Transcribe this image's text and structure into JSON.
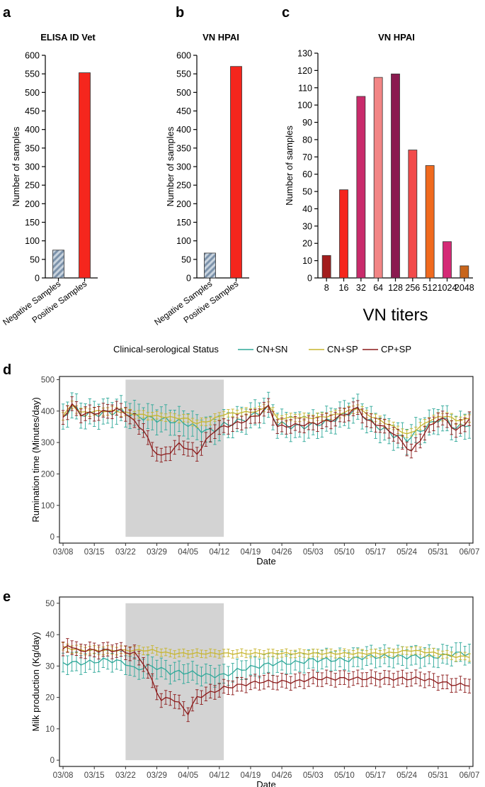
{
  "panel_labels": {
    "a": "a",
    "b": "b",
    "c": "c",
    "d": "d",
    "e": "e"
  },
  "colors": {
    "red": "#f5261d",
    "hatch": "#9fb3c8",
    "cn_sn": "#2ea899",
    "cn_sp": "#c7b52e",
    "cp_sp": "#8b1a1a",
    "shade": "#d3d3d3"
  },
  "legend": {
    "title": "Clinical-serological Status",
    "items": [
      {
        "key": "cn_sn",
        "label": "CN+SN"
      },
      {
        "key": "cn_sp",
        "label": "CN+SP"
      },
      {
        "key": "cp_sp",
        "label": "CP+SP"
      }
    ]
  },
  "chart_data": [
    {
      "id": "a",
      "type": "bar",
      "title": "ELISA ID Vet",
      "ylabel": "Number of samples",
      "xlabel": "",
      "categories": [
        "Negative Samples",
        "Positive Samples"
      ],
      "values": [
        75,
        553
      ],
      "ylim": [
        0,
        600
      ],
      "yticks": [
        0,
        50,
        100,
        150,
        200,
        250,
        300,
        350,
        400,
        450,
        500,
        550,
        600
      ]
    },
    {
      "id": "b",
      "type": "bar",
      "title": "VN HPAI",
      "ylabel": "Number of samples",
      "xlabel": "",
      "categories": [
        "Negative Samples",
        "Positive Samples"
      ],
      "values": [
        67,
        570
      ],
      "ylim": [
        0,
        600
      ],
      "yticks": [
        0,
        50,
        100,
        150,
        200,
        250,
        300,
        350,
        400,
        450,
        500,
        550,
        600
      ]
    },
    {
      "id": "c",
      "type": "bar",
      "title": "VN HPAI",
      "ylabel": "Number of samples",
      "xlabel": "VN titers",
      "categories": [
        "8",
        "16",
        "32",
        "64",
        "128",
        "256",
        "512",
        "1024",
        "2048"
      ],
      "values": [
        13,
        51,
        105,
        116,
        118,
        74,
        65,
        21,
        7
      ],
      "bar_colors": [
        "#a31d1d",
        "#f5261d",
        "#c92a6b",
        "#f28585",
        "#8a1a4f",
        "#f24b4b",
        "#f06a1e",
        "#d42a76",
        "#c8651b"
      ],
      "ylim": [
        0,
        130
      ],
      "yticks": [
        0,
        10,
        20,
        30,
        40,
        50,
        60,
        70,
        80,
        90,
        100,
        110,
        120,
        130
      ]
    },
    {
      "id": "d",
      "type": "line",
      "title": "",
      "ylabel": "Rumination time (Minutes/day)",
      "xlabel": "Date",
      "x_start": "03/08",
      "n_days": 92,
      "xtick_labels": [
        "03/08",
        "03/15",
        "03/22",
        "03/29",
        "04/05",
        "04/12",
        "04/19",
        "04/26",
        "05/03",
        "05/10",
        "05/17",
        "05/24",
        "05/31",
        "06/07"
      ],
      "ylim": [
        -20,
        510
      ],
      "yticks": [
        0,
        100,
        200,
        300,
        400,
        500
      ],
      "shaded_day_range": [
        14,
        36
      ],
      "series": [
        {
          "name": "CN+SN",
          "key": "cn_sn",
          "err": 40,
          "anchors": [
            [
              0,
              375
            ],
            [
              2,
              420
            ],
            [
              4,
              390
            ],
            [
              7,
              390
            ],
            [
              10,
              395
            ],
            [
              13,
              400
            ],
            [
              16,
              385
            ],
            [
              20,
              375
            ],
            [
              24,
              370
            ],
            [
              28,
              360
            ],
            [
              30,
              345
            ],
            [
              33,
              335
            ],
            [
              36,
              355
            ],
            [
              40,
              370
            ],
            [
              44,
              395
            ],
            [
              46,
              410
            ],
            [
              48,
              360
            ],
            [
              52,
              350
            ],
            [
              56,
              355
            ],
            [
              60,
              370
            ],
            [
              64,
              395
            ],
            [
              66,
              405
            ],
            [
              68,
              375
            ],
            [
              70,
              355
            ],
            [
              72,
              340
            ],
            [
              74,
              325
            ],
            [
              77,
              310
            ],
            [
              79,
              330
            ],
            [
              82,
              355
            ],
            [
              84,
              375
            ],
            [
              86,
              370
            ],
            [
              88,
              345
            ],
            [
              91,
              360
            ]
          ]
        },
        {
          "name": "CN+SP",
          "key": "cn_sp",
          "err": 12,
          "anchors": [
            [
              0,
              385
            ],
            [
              2,
              420
            ],
            [
              4,
              395
            ],
            [
              8,
              400
            ],
            [
              12,
              400
            ],
            [
              16,
              390
            ],
            [
              20,
              385
            ],
            [
              24,
              380
            ],
            [
              28,
              375
            ],
            [
              30,
              360
            ],
            [
              33,
              370
            ],
            [
              36,
              390
            ],
            [
              40,
              395
            ],
            [
              44,
              400
            ],
            [
              46,
              420
            ],
            [
              48,
              375
            ],
            [
              52,
              380
            ],
            [
              56,
              378
            ],
            [
              60,
              385
            ],
            [
              64,
              400
            ],
            [
              66,
              410
            ],
            [
              68,
              390
            ],
            [
              71,
              370
            ],
            [
              74,
              350
            ],
            [
              77,
              325
            ],
            [
              79,
              340
            ],
            [
              82,
              370
            ],
            [
              84,
              380
            ],
            [
              86,
              385
            ],
            [
              88,
              370
            ],
            [
              91,
              375
            ]
          ]
        },
        {
          "name": "CP+SP",
          "key": "cp_sp",
          "err": 22,
          "anchors": [
            [
              0,
              380
            ],
            [
              2,
              420
            ],
            [
              4,
              390
            ],
            [
              8,
              395
            ],
            [
              12,
              405
            ],
            [
              14,
              395
            ],
            [
              16,
              365
            ],
            [
              18,
              340
            ],
            [
              20,
              280
            ],
            [
              22,
              255
            ],
            [
              24,
              270
            ],
            [
              26,
              295
            ],
            [
              28,
              280
            ],
            [
              30,
              265
            ],
            [
              32,
              305
            ],
            [
              34,
              340
            ],
            [
              36,
              350
            ],
            [
              40,
              365
            ],
            [
              44,
              390
            ],
            [
              46,
              415
            ],
            [
              48,
              350
            ],
            [
              52,
              355
            ],
            [
              56,
              360
            ],
            [
              60,
              370
            ],
            [
              64,
              395
            ],
            [
              66,
              410
            ],
            [
              68,
              370
            ],
            [
              71,
              355
            ],
            [
              74,
              330
            ],
            [
              76,
              300
            ],
            [
              78,
              270
            ],
            [
              80,
              310
            ],
            [
              82,
              350
            ],
            [
              84,
              375
            ],
            [
              86,
              370
            ],
            [
              88,
              335
            ],
            [
              91,
              375
            ]
          ]
        }
      ]
    },
    {
      "id": "e",
      "type": "line",
      "title": "",
      "ylabel": "Milk production (Kg/day)",
      "xlabel": "Date",
      "x_start": "03/08",
      "n_days": 92,
      "xtick_labels": [
        "03/08",
        "03/15",
        "03/22",
        "03/29",
        "04/05",
        "04/12",
        "04/19",
        "04/26",
        "05/03",
        "05/10",
        "05/17",
        "05/24",
        "05/31",
        "06/07"
      ],
      "ylim": [
        -2,
        52
      ],
      "yticks": [
        0,
        10,
        20,
        30,
        40,
        50
      ],
      "shaded_day_range": [
        14,
        36
      ],
      "series": [
        {
          "name": "CN+SN",
          "key": "cn_sn",
          "err": 3,
          "anchors": [
            [
              0,
              31
            ],
            [
              5,
              31
            ],
            [
              10,
              32
            ],
            [
              14,
              31
            ],
            [
              16,
              29
            ],
            [
              20,
              30
            ],
            [
              24,
              28
            ],
            [
              28,
              28
            ],
            [
              32,
              27
            ],
            [
              36,
              27
            ],
            [
              40,
              29
            ],
            [
              44,
              30
            ],
            [
              48,
              31
            ],
            [
              52,
              31
            ],
            [
              56,
              32
            ],
            [
              60,
              32
            ],
            [
              64,
              32
            ],
            [
              68,
              33
            ],
            [
              72,
              33
            ],
            [
              76,
              33
            ],
            [
              80,
              33
            ],
            [
              84,
              33
            ],
            [
              88,
              34
            ],
            [
              91,
              34
            ]
          ]
        },
        {
          "name": "CN+SP",
          "key": "cn_sp",
          "err": 1.2,
          "anchors": [
            [
              0,
              36
            ],
            [
              4,
              35
            ],
            [
              8,
              35
            ],
            [
              12,
              35
            ],
            [
              16,
              35
            ],
            [
              20,
              35
            ],
            [
              24,
              34
            ],
            [
              28,
              34
            ],
            [
              32,
              34
            ],
            [
              36,
              34
            ],
            [
              40,
              34
            ],
            [
              48,
              34
            ],
            [
              56,
              34
            ],
            [
              64,
              34
            ],
            [
              72,
              34
            ],
            [
              78,
              35
            ],
            [
              84,
              34
            ],
            [
              88,
              33
            ],
            [
              91,
              33
            ]
          ]
        },
        {
          "name": "CP+SP",
          "key": "cp_sp",
          "err": 2.2,
          "anchors": [
            [
              0,
              35
            ],
            [
              1,
              37
            ],
            [
              3,
              35
            ],
            [
              8,
              35
            ],
            [
              12,
              35
            ],
            [
              16,
              34
            ],
            [
              18,
              31
            ],
            [
              20,
              25
            ],
            [
              22,
              19
            ],
            [
              24,
              20
            ],
            [
              26,
              18
            ],
            [
              28,
              15
            ],
            [
              30,
              20
            ],
            [
              32,
              21
            ],
            [
              34,
              22
            ],
            [
              36,
              23
            ],
            [
              40,
              24
            ],
            [
              44,
              25
            ],
            [
              48,
              25
            ],
            [
              52,
              25
            ],
            [
              56,
              26
            ],
            [
              60,
              26
            ],
            [
              64,
              26
            ],
            [
              68,
              26
            ],
            [
              72,
              26
            ],
            [
              76,
              26
            ],
            [
              80,
              26
            ],
            [
              84,
              25
            ],
            [
              88,
              24
            ],
            [
              91,
              24
            ]
          ]
        }
      ]
    }
  ]
}
